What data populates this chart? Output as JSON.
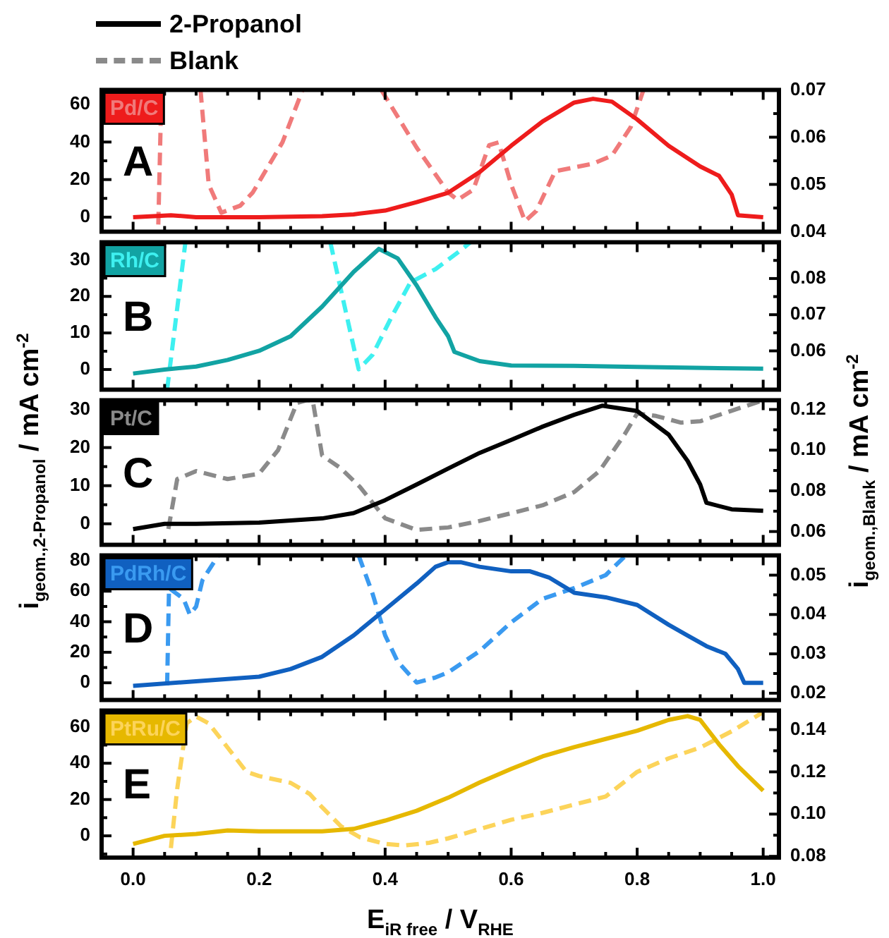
{
  "chart_data": [
    {
      "type": "line",
      "annotations": [
        "Pd/C",
        "A"
      ],
      "xlim": [
        -0.05,
        1.025
      ],
      "xticks": [
        0,
        {
          "value": 0.05,
          "label": null
        },
        {
          "value": 0.1,
          "label": null
        },
        {
          "value": 0.15,
          "label": null
        },
        0.2,
        {
          "value": 0.25,
          "label": null
        },
        {
          "value": 0.3,
          "label": null
        },
        {
          "value": 0.35,
          "label": null
        },
        0.4,
        {
          "value": 0.45,
          "label": null
        },
        {
          "value": 0.5,
          "label": null
        },
        {
          "value": 0.55,
          "label": null
        },
        0.6,
        {
          "value": 0.65,
          "label": null
        },
        {
          "value": 0.7,
          "label": null
        },
        {
          "value": 0.75,
          "label": null
        },
        0.8,
        {
          "value": 0.85,
          "label": null
        },
        {
          "value": 0.9,
          "label": null
        },
        {
          "value": 0.95,
          "label": null
        },
        1
      ],
      "ylim": [
        -7.7,
        67.7
      ],
      "yticks": [
        0,
        {
          "value": 10,
          "label": null
        },
        20,
        {
          "value": 30,
          "label": null
        },
        40,
        {
          "value": 50,
          "label": null
        },
        60
      ],
      "y2lim": [
        0.04,
        0.07
      ],
      "y2ticks": [
        0.04,
        {
          "value": 0.045,
          "label": null
        },
        0.05,
        {
          "value": 0.055,
          "label": null
        },
        0.06,
        {
          "value": 0.065,
          "label": null
        },
        0.07
      ],
      "tick_labels": "y",
      "grid": false,
      "legend": false,
      "marker": "none",
      "series": [
        {
          "color": "#ee1c1c",
          "line_style": "solid",
          "x": [
            0,
            0.06,
            0.1,
            0.2,
            0.3,
            0.35,
            0.4,
            0.45,
            0.5,
            0.55,
            0.6,
            0.65,
            0.7,
            0.73,
            0.76,
            0.8,
            0.85,
            0.9,
            0.93,
            0.95,
            0.96,
            1.0
          ],
          "values": [
            0,
            1,
            0,
            0,
            0.5,
            1.5,
            3.5,
            8,
            13,
            24,
            38,
            51,
            61,
            63,
            61.5,
            52,
            38,
            27,
            22,
            12,
            1,
            0
          ]
        },
        {
          "color": "#f07a7a",
          "line_style": "dashed",
          "axis": "y2",
          "x": [
            0.04,
            0.045,
            0.05,
            0.107,
            0.12,
            0.14,
            0.17,
            0.19,
            0.237,
            0.269,
            0.28,
            0.394,
            0.45,
            0.5,
            0.515,
            0.54,
            0.565,
            0.58,
            0.6,
            0.622,
            0.64,
            0.67,
            0.73,
            0.76,
            0.79,
            0.81
          ],
          "values": [
            0.0415,
            0.07,
            null,
            0.07,
            0.05,
            0.044,
            0.0455,
            0.0483,
            0.0589,
            0.07,
            null,
            0.07,
            0.0578,
            0.0483,
            0.0467,
            0.0489,
            0.0583,
            0.0589,
            0.05,
            0.0422,
            0.0444,
            0.0528,
            0.0544,
            0.0561,
            0.0622,
            0.07
          ]
        }
      ]
    },
    {
      "type": "line",
      "annotations": [
        "Rh/C",
        "B"
      ],
      "xlim": [
        -0.05,
        1.025
      ],
      "xticks": [
        0,
        {
          "value": 0.05,
          "label": null
        },
        {
          "value": 0.1,
          "label": null
        },
        {
          "value": 0.15,
          "label": null
        },
        0.2,
        {
          "value": 0.25,
          "label": null
        },
        {
          "value": 0.3,
          "label": null
        },
        {
          "value": 0.35,
          "label": null
        },
        0.4,
        {
          "value": 0.45,
          "label": null
        },
        {
          "value": 0.5,
          "label": null
        },
        {
          "value": 0.55,
          "label": null
        },
        0.6,
        {
          "value": 0.65,
          "label": null
        },
        {
          "value": 0.7,
          "label": null
        },
        {
          "value": 0.75,
          "label": null
        },
        0.8,
        {
          "value": 0.85,
          "label": null
        },
        {
          "value": 0.9,
          "label": null
        },
        {
          "value": 0.95,
          "label": null
        },
        1
      ],
      "ylim": [
        -5.5,
        34.8
      ],
      "yticks": [
        0,
        {
          "value": 5,
          "label": null
        },
        10,
        {
          "value": 15,
          "label": null
        },
        20,
        {
          "value": 25,
          "label": null
        },
        30
      ],
      "y2lim": [
        0.0493,
        0.09
      ],
      "y2ticks": [
        {
          "value": 0.055,
          "label": null
        },
        0.06,
        {
          "value": 0.065,
          "label": null
        },
        0.07,
        {
          "value": 0.075,
          "label": null
        },
        0.08,
        {
          "value": 0.085,
          "label": null
        }
      ],
      "tick_labels": "y",
      "grid": false,
      "legend": false,
      "marker": "none",
      "series": [
        {
          "color": "#12a3a3",
          "line_style": "solid",
          "x": [
            0,
            0.05,
            0.1,
            0.15,
            0.2,
            0.25,
            0.3,
            0.35,
            0.39,
            0.42,
            0.45,
            0.48,
            0.5,
            0.51,
            0.55,
            0.6,
            0.7,
            0.8,
            1.0
          ],
          "values": [
            -1.1,
            0,
            0.8,
            2.6,
            5.1,
            9.1,
            17.2,
            26.7,
            33,
            30.4,
            23,
            14.3,
            9.1,
            4.8,
            2.3,
            1.1,
            1,
            0.7,
            0.2
          ]
        },
        {
          "color": "#3ef0f0",
          "line_style": "dashed",
          "axis": "y2",
          "x": [
            0.054,
            0.083,
            0.09,
            0.313,
            0.358,
            0.38,
            0.41,
            0.44,
            0.48,
            0.52,
            0.535
          ],
          "values": [
            0.0493,
            0.09,
            null,
            0.09,
            0.0549,
            0.0589,
            0.0693,
            0.0789,
            0.0826,
            0.0878,
            0.09
          ]
        }
      ]
    },
    {
      "type": "line",
      "annotations": [
        "Pt/C",
        "C"
      ],
      "ylabel": "i$_{geom.,2-Propanol}$ / mA cm$^{-2}$",
      "y2label": "i$_{geom.,Blank}$ / mA cm$^{-2}$",
      "xlim": [
        -0.05,
        1.025
      ],
      "xticks": [
        0,
        {
          "value": 0.05,
          "label": null
        },
        {
          "value": 0.1,
          "label": null
        },
        {
          "value": 0.15,
          "label": null
        },
        0.2,
        {
          "value": 0.25,
          "label": null
        },
        {
          "value": 0.3,
          "label": null
        },
        {
          "value": 0.35,
          "label": null
        },
        0.4,
        {
          "value": 0.45,
          "label": null
        },
        {
          "value": 0.5,
          "label": null
        },
        {
          "value": 0.55,
          "label": null
        },
        0.6,
        {
          "value": 0.65,
          "label": null
        },
        {
          "value": 0.7,
          "label": null
        },
        {
          "value": 0.75,
          "label": null
        },
        0.8,
        {
          "value": 0.85,
          "label": null
        },
        {
          "value": 0.9,
          "label": null
        },
        {
          "value": 0.95,
          "label": null
        },
        1
      ],
      "ylim": [
        -5.5,
        32.4
      ],
      "yticks": [
        0,
        {
          "value": 5,
          "label": null
        },
        10,
        {
          "value": 15,
          "label": null
        },
        20,
        {
          "value": 25,
          "label": null
        },
        30
      ],
      "y2lim": [
        0.0535,
        0.1245
      ],
      "y2ticks": [
        0.06,
        {
          "value": 0.07,
          "label": null
        },
        0.08,
        {
          "value": 0.09,
          "label": null
        },
        {
          "value": 0.1,
          "label": "0.10"
        },
        {
          "value": 0.11,
          "label": null
        },
        0.12
      ],
      "tick_labels": "y",
      "grid": false,
      "legend": "top left",
      "marker": "none",
      "series": [
        {
          "name": "2-Propanol",
          "color": "#000000",
          "line_style": "solid",
          "x": [
            0,
            0.05,
            0.1,
            0.2,
            0.3,
            0.35,
            0.4,
            0.45,
            0.5,
            0.55,
            0.6,
            0.65,
            0.7,
            0.745,
            0.8,
            0.85,
            0.88,
            0.9,
            0.91,
            0.95,
            1.0
          ],
          "values": [
            -1.4,
            0,
            0,
            0.3,
            1.4,
            2.8,
            6.2,
            10.3,
            14.5,
            18.6,
            22,
            25.5,
            28.6,
            31,
            29.6,
            23.4,
            16.5,
            10.3,
            5.5,
            3.8,
            3.4
          ]
        },
        {
          "name": "Blank",
          "color": "#8a8a8a",
          "line_style": "dashed",
          "axis": "y2",
          "x": [
            0.056,
            0.07,
            0.1,
            0.15,
            0.2,
            0.23,
            0.26,
            0.275,
            0.285,
            0.3,
            0.33,
            0.36,
            0.4,
            0.45,
            0.5,
            0.55,
            0.6,
            0.65,
            0.7,
            0.74,
            0.78,
            0.8,
            0.83,
            0.87,
            0.9,
            0.95,
            1.0
          ],
          "values": [
            0.0613,
            0.0858,
            0.0897,
            0.0858,
            0.0884,
            0.1,
            0.1232,
            0.1245,
            0.1245,
            0.0974,
            0.091,
            0.0819,
            0.0665,
            0.0608,
            0.062,
            0.0652,
            0.069,
            0.0729,
            0.0794,
            0.0897,
            0.1077,
            0.118,
            0.1168,
            0.1135,
            0.1142,
            0.1194,
            0.1245
          ]
        }
      ]
    },
    {
      "type": "line",
      "annotations": [
        "PdRh/C",
        "D"
      ],
      "xlim": [
        -0.05,
        1.025
      ],
      "xticks": [
        0,
        {
          "value": 0.05,
          "label": null
        },
        {
          "value": 0.1,
          "label": null
        },
        {
          "value": 0.15,
          "label": null
        },
        0.2,
        {
          "value": 0.25,
          "label": null
        },
        {
          "value": 0.3,
          "label": null
        },
        {
          "value": 0.35,
          "label": null
        },
        0.4,
        {
          "value": 0.45,
          "label": null
        },
        {
          "value": 0.5,
          "label": null
        },
        {
          "value": 0.55,
          "label": null
        },
        0.6,
        {
          "value": 0.65,
          "label": null
        },
        {
          "value": 0.7,
          "label": null
        },
        {
          "value": 0.75,
          "label": null
        },
        0.8,
        {
          "value": 0.85,
          "label": null
        },
        {
          "value": 0.9,
          "label": null
        },
        {
          "value": 0.95,
          "label": null
        },
        1
      ],
      "ylim": [
        -11.2,
        83.4
      ],
      "yticks": [
        0,
        {
          "value": 10,
          "label": null
        },
        20,
        {
          "value": 30,
          "label": null
        },
        40,
        {
          "value": 50,
          "label": null
        },
        60,
        {
          "value": 70,
          "label": null
        },
        80
      ],
      "y2lim": [
        0.0183,
        0.055
      ],
      "y2ticks": [
        0.02,
        {
          "value": 0.025,
          "label": null
        },
        0.03,
        {
          "value": 0.035,
          "label": null
        },
        0.04,
        {
          "value": 0.045,
          "label": null
        },
        0.05
      ],
      "tick_labels": "y",
      "grid": false,
      "legend": false,
      "marker": "none",
      "series": [
        {
          "color": "#1060c0",
          "line_style": "solid",
          "x": [
            0,
            0.1,
            0.2,
            0.25,
            0.3,
            0.35,
            0.4,
            0.45,
            0.48,
            0.5,
            0.52,
            0.55,
            0.6,
            0.63,
            0.66,
            0.7,
            0.75,
            0.8,
            0.85,
            0.88,
            0.91,
            0.94,
            0.96,
            0.97,
            1.0
          ],
          "values": [
            -2,
            1,
            4,
            9,
            17,
            31,
            48,
            65,
            76,
            79,
            79,
            76,
            73,
            73,
            69,
            59,
            56,
            51,
            38,
            31,
            24,
            19,
            9,
            0,
            0
          ]
        },
        {
          "color": "#3a9af0",
          "line_style": "dashed",
          "axis": "y2",
          "x": [
            0.054,
            0.057,
            0.08,
            0.09,
            0.1,
            0.11,
            0.135,
            0.14,
            0.358,
            0.38,
            0.4,
            0.42,
            0.45,
            0.48,
            0.5,
            0.55,
            0.6,
            0.65,
            0.7,
            0.75,
            0.78,
            0.785
          ],
          "values": [
            0.022,
            0.0467,
            0.044,
            0.04,
            0.042,
            0.0487,
            0.055,
            null,
            0.055,
            0.0453,
            0.0347,
            0.028,
            0.0227,
            0.024,
            0.0253,
            0.0307,
            0.038,
            0.044,
            0.0467,
            0.05,
            0.0547,
            0.055
          ]
        }
      ]
    },
    {
      "type": "line",
      "annotations": [
        "PtRu/C",
        "E"
      ],
      "xlabel": "E$_{iR free}$ / V$_{RHE}$",
      "xlim": [
        -0.05,
        1.025
      ],
      "xticks": [
        {
          "value": 0,
          "label": "0.0"
        },
        {
          "value": 0.05,
          "label": null
        },
        {
          "value": 0.1,
          "label": null
        },
        {
          "value": 0.15,
          "label": null
        },
        0.2,
        {
          "value": 0.25,
          "label": null
        },
        {
          "value": 0.3,
          "label": null
        },
        {
          "value": 0.35,
          "label": null
        },
        0.4,
        {
          "value": 0.45,
          "label": null
        },
        {
          "value": 0.5,
          "label": null
        },
        {
          "value": 0.55,
          "label": null
        },
        0.6,
        {
          "value": 0.65,
          "label": null
        },
        {
          "value": 0.7,
          "label": null
        },
        {
          "value": 0.75,
          "label": null
        },
        0.8,
        {
          "value": 0.85,
          "label": null
        },
        {
          "value": 0.9,
          "label": null
        },
        {
          "value": 0.95,
          "label": null
        },
        {
          "value": 1,
          "label": "1.0"
        }
      ],
      "ylim": [
        -12,
        69
      ],
      "yticks": [
        {
          "value": -10,
          "label": null
        },
        0,
        {
          "value": 10,
          "label": null
        },
        20,
        {
          "value": 30,
          "label": null
        },
        40,
        {
          "value": 50,
          "label": null
        },
        60
      ],
      "y2lim": [
        0.0794,
        0.149
      ],
      "y2ticks": [
        0.08,
        {
          "value": 0.09,
          "label": null
        },
        {
          "value": 0.1,
          "label": "0.10"
        },
        {
          "value": 0.11,
          "label": null
        },
        0.12,
        {
          "value": 0.13,
          "label": null
        },
        0.14
      ],
      "grid": false,
      "legend": false,
      "marker": "none",
      "series": [
        {
          "color": "#e6b800",
          "line_style": "solid",
          "x": [
            0,
            0.05,
            0.1,
            0.15,
            0.2,
            0.3,
            0.35,
            0.4,
            0.45,
            0.5,
            0.55,
            0.6,
            0.65,
            0.7,
            0.75,
            0.8,
            0.85,
            0.88,
            0.9,
            0.93,
            0.96,
            1.0
          ],
          "values": [
            -4.5,
            0,
            1,
            3,
            2.5,
            2.5,
            3.8,
            8.4,
            13.8,
            21,
            29.4,
            36.9,
            43.8,
            48.9,
            53.4,
            57.9,
            63.9,
            66,
            63.9,
            50.4,
            38.4,
            24.9
          ]
        },
        {
          "color": "#fcd45a",
          "line_style": "dashed",
          "axis": "y2",
          "x": [
            0.06,
            0.07,
            0.085,
            0.1,
            0.12,
            0.15,
            0.18,
            0.2,
            0.25,
            0.28,
            0.3,
            0.33,
            0.36,
            0.4,
            0.43,
            0.47,
            0.5,
            0.55,
            0.6,
            0.65,
            0.7,
            0.75,
            0.8,
            0.85,
            0.9,
            0.95,
            1.0
          ],
          "values": [
            0.0839,
            0.112,
            0.143,
            0.1462,
            0.143,
            0.1315,
            0.12,
            0.118,
            0.1148,
            0.1096,
            0.1032,
            0.0942,
            0.089,
            0.0859,
            0.0851,
            0.0864,
            0.0885,
            0.0929,
            0.0973,
            0.1006,
            0.1045,
            0.1083,
            0.12,
            0.1264,
            0.1315,
            0.1392,
            0.1483
          ]
        }
      ]
    }
  ]
}
